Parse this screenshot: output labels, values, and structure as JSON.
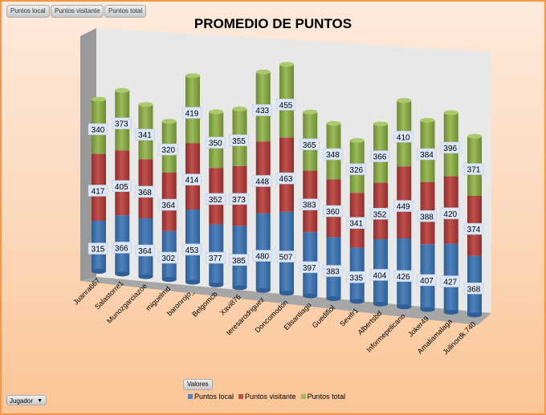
{
  "filter_buttons": [
    "Puntos local",
    "Puntos visitante",
    "Puntos total"
  ],
  "values_button": "Valores",
  "row_field": {
    "label": "Jugador"
  },
  "colors": {
    "local": "#4f81bd",
    "visitante": "#c0504d",
    "total": "#9bbb59"
  },
  "chart_data": {
    "type": "bar",
    "stacked": true,
    "title": "PROMEDIO DE PUNTOS",
    "legend_position": "bottom",
    "categories": [
      "Juanra667",
      "Salastorre1",
      "Munozgarciazoe",
      "miguelmd",
      "baronrojo_",
      "Belgomcb",
      "Xavi876",
      "teresarodriguez",
      "Doncomodon",
      "Elisantiago",
      "Guedifiol",
      "Sevifr1",
      "Albertsbd",
      "Informepelicano",
      "Joker49",
      "Amaliamalaga",
      "Julinordk.740"
    ],
    "series": [
      {
        "name": "Puntos local",
        "values": [
          315,
          366,
          364,
          302,
          453,
          377,
          385,
          480,
          507,
          397,
          383,
          335,
          404,
          426,
          407,
          427,
          368
        ]
      },
      {
        "name": "Puntos visitante",
        "values": [
          417,
          405,
          368,
          364,
          414,
          352,
          373,
          448,
          463,
          383,
          360,
          341,
          352,
          449,
          388,
          420,
          374
        ]
      },
      {
        "name": "Puntos total",
        "values": [
          340,
          373,
          341,
          320,
          419,
          350,
          355,
          433,
          455,
          365,
          348,
          326,
          366,
          410,
          384,
          396,
          371
        ]
      }
    ]
  }
}
